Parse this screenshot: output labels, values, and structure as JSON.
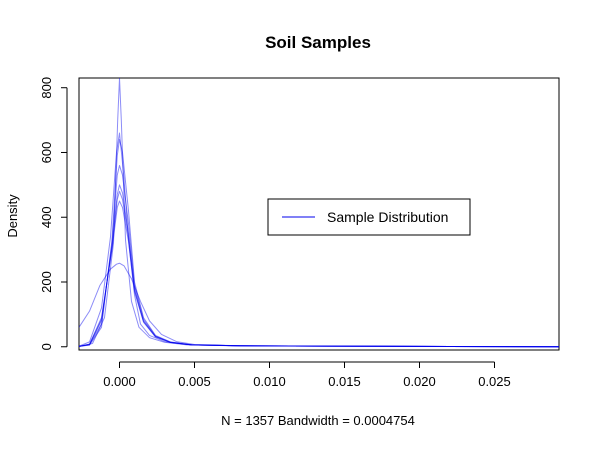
{
  "chart_data": {
    "type": "line",
    "title": "Soil Samples",
    "xlabel": "N = 1357   Bandwidth = 0.0004754",
    "ylabel": "Density",
    "xlim": [
      -0.0027,
      0.0293
    ],
    "ylim": [
      -10,
      830
    ],
    "xticks": [
      0.0,
      0.005,
      0.01,
      0.015,
      0.02,
      0.025
    ],
    "xtick_labels": [
      "0.000",
      "0.005",
      "0.010",
      "0.015",
      "0.020",
      "0.025"
    ],
    "yticks": [
      0,
      200,
      400,
      600,
      800
    ],
    "ytick_labels": [
      "0",
      "200",
      "400",
      "600",
      "800"
    ],
    "grid": false,
    "legend": {
      "position": "center-right",
      "entries": [
        "Sample Distribution"
      ]
    },
    "colors": {
      "series": "#0000ee"
    },
    "series": [
      {
        "x": [
          -0.0027,
          -0.002,
          -0.0012,
          -0.0005,
          -0.00015,
          0.0,
          0.0002,
          0.0006,
          0.001,
          0.0016,
          0.0024,
          0.0034,
          0.0048,
          0.008,
          0.014,
          0.022,
          0.0293
        ],
        "y": [
          1,
          5,
          60,
          330,
          590,
          640,
          600,
          420,
          200,
          90,
          35,
          15,
          6,
          3,
          2,
          1,
          0
        ]
      },
      {
        "x": [
          -0.0027,
          -0.002,
          -0.0012,
          -0.0005,
          -0.00015,
          0.0,
          0.0002,
          0.0006,
          0.001,
          0.0016,
          0.0024,
          0.0034,
          0.0048,
          0.008,
          0.014,
          0.022,
          0.0293
        ],
        "y": [
          1,
          6,
          70,
          320,
          530,
          560,
          530,
          380,
          190,
          85,
          33,
          14,
          6,
          3,
          2,
          1,
          0
        ]
      },
      {
        "x": [
          -0.0027,
          -0.002,
          -0.0012,
          -0.0005,
          -0.00015,
          0.0,
          0.0002,
          0.0006,
          0.001,
          0.0016,
          0.0024,
          0.0034,
          0.0048,
          0.008,
          0.014,
          0.022,
          0.0293
        ],
        "y": [
          1,
          7,
          80,
          310,
          470,
          500,
          475,
          350,
          180,
          80,
          32,
          14,
          6,
          3,
          2,
          1,
          0
        ]
      },
      {
        "x": [
          -0.0027,
          -0.002,
          -0.0012,
          -0.0005,
          -0.00015,
          0.0,
          0.0002,
          0.0006,
          0.001,
          0.0016,
          0.0024,
          0.0034,
          0.0048,
          0.008,
          0.014,
          0.022,
          0.0293
        ],
        "y": [
          1,
          7,
          85,
          305,
          455,
          480,
          455,
          340,
          175,
          78,
          31,
          13,
          6,
          3,
          2,
          1,
          0
        ]
      },
      {
        "x": [
          -0.0027,
          -0.002,
          -0.0012,
          -0.0005,
          -0.00015,
          0.0,
          0.0002,
          0.0006,
          0.001,
          0.0016,
          0.0024,
          0.0034,
          0.0048,
          0.008,
          0.014,
          0.022,
          0.0293
        ],
        "y": [
          1,
          8,
          90,
          300,
          430,
          450,
          430,
          325,
          170,
          76,
          30,
          13,
          6,
          3,
          2,
          1,
          0
        ]
      },
      {
        "x": [
          -0.0027,
          -0.002,
          -0.0012,
          -0.0006,
          -0.0002,
          0.0,
          0.0003,
          0.0006,
          0.001,
          0.0014,
          0.002,
          0.003,
          0.0045,
          0.0075,
          0.013,
          0.022,
          0.0293
        ],
        "y": [
          2,
          15,
          120,
          340,
          600,
          660,
          520,
          330,
          160,
          70,
          35,
          16,
          7,
          3,
          2,
          1,
          0
        ]
      },
      {
        "x": [
          -0.0027,
          -0.0018,
          -0.001,
          -0.0004,
          -0.00012,
          0.0,
          0.00012,
          0.0004,
          0.0008,
          0.0013,
          0.002,
          0.003,
          0.0045,
          0.0075,
          0.013,
          0.022,
          0.0293
        ],
        "y": [
          1,
          10,
          90,
          320,
          700,
          830,
          700,
          330,
          140,
          60,
          28,
          14,
          6,
          3,
          2,
          1,
          0
        ]
      },
      {
        "x": [
          -0.0027,
          -0.002,
          -0.0013,
          -0.0006,
          -0.0002,
          0.0,
          0.0003,
          0.0008,
          0.0014,
          0.002,
          0.0028,
          0.0038,
          0.005,
          0.008,
          0.014,
          0.022,
          0.0293
        ],
        "y": [
          60,
          110,
          190,
          240,
          255,
          258,
          250,
          210,
          140,
          80,
          38,
          16,
          7,
          3,
          2,
          1,
          0
        ]
      }
    ]
  }
}
